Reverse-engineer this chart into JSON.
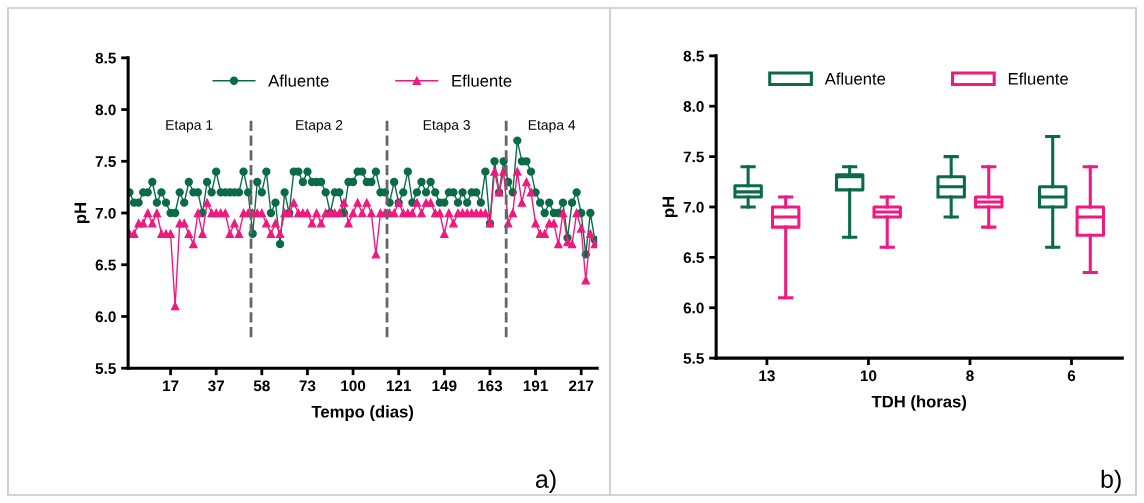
{
  "chart_data": [
    {
      "type": "line",
      "xlabel": "Tempo (dias)",
      "ylabel": "pH",
      "legend": "top",
      "categories": [
        null,
        null,
        null,
        null,
        null,
        null,
        null,
        null,
        null,
        "17",
        null,
        null,
        null,
        null,
        null,
        null,
        null,
        null,
        null,
        "37",
        null,
        null,
        null,
        null,
        null,
        null,
        null,
        null,
        null,
        "58",
        null,
        null,
        null,
        null,
        null,
        null,
        null,
        null,
        null,
        "73",
        null,
        null,
        null,
        null,
        null,
        null,
        null,
        null,
        null,
        "100",
        null,
        null,
        null,
        null,
        null,
        null,
        null,
        null,
        null,
        "121",
        null,
        null,
        null,
        null,
        null,
        null,
        null,
        null,
        null,
        "149",
        null,
        null,
        null,
        null,
        null,
        null,
        null,
        null,
        null,
        "163",
        null,
        null,
        null,
        null,
        null,
        null,
        null,
        null,
        null,
        "191",
        null,
        null,
        null,
        null,
        null,
        null,
        null,
        null,
        null,
        "217",
        null,
        null,
        null
      ],
      "series": [
        {
          "name": "Afluente",
          "color": "#0a6b47",
          "marker": "circle",
          "values": [
            7.2,
            7.1,
            7.1,
            7.2,
            7.2,
            7.3,
            7.1,
            7.2,
            7.1,
            7.0,
            7.0,
            7.2,
            7.1,
            7.3,
            7.2,
            7.2,
            7.0,
            7.3,
            7.2,
            7.4,
            7.2,
            7.2,
            7.2,
            7.2,
            7.2,
            7.4,
            7.2,
            6.8,
            7.3,
            7.2,
            7.4,
            7.0,
            7.1,
            6.7,
            7.2,
            7.0,
            7.4,
            7.4,
            7.3,
            7.4,
            7.3,
            7.3,
            7.3,
            7.2,
            7.0,
            7.2,
            7.2,
            7.0,
            7.3,
            7.3,
            7.4,
            7.4,
            7.3,
            7.3,
            7.4,
            7.2,
            7.2,
            7.1,
            7.3,
            7.1,
            7.2,
            7.4,
            7.1,
            7.2,
            7.3,
            7.2,
            7.3,
            7.2,
            7.1,
            7.1,
            7.2,
            7.2,
            7.1,
            7.2,
            7.1,
            7.2,
            7.2,
            7.1,
            7.4,
            6.9,
            7.5,
            7.2,
            7.5,
            7.3,
            7.2,
            7.7,
            7.5,
            7.5,
            7.4,
            7.2,
            7.1,
            7.0,
            7.1,
            7.0,
            7.0,
            7.1,
            6.76,
            7.1,
            7.2,
            7.0,
            6.6,
            7.0,
            6.74
          ]
        },
        {
          "name": "Efluente",
          "color": "#f0197f",
          "marker": "triangle",
          "values": [
            6.8,
            6.8,
            6.9,
            6.9,
            7.0,
            6.9,
            7.0,
            6.8,
            6.8,
            6.8,
            6.1,
            6.9,
            6.9,
            6.8,
            6.7,
            7.0,
            6.8,
            7.1,
            7.0,
            7.0,
            7.0,
            7.0,
            6.8,
            6.9,
            6.8,
            7.0,
            7.0,
            7.0,
            7.0,
            7.0,
            6.9,
            6.8,
            6.9,
            6.8,
            7.0,
            7.0,
            7.1,
            7.0,
            7.0,
            7.0,
            6.9,
            7.0,
            6.9,
            7.0,
            7.0,
            7.0,
            7.0,
            7.1,
            6.9,
            7.0,
            7.1,
            7.0,
            7.1,
            7.0,
            6.6,
            7.0,
            7.0,
            7.0,
            7.0,
            7.1,
            7.0,
            7.0,
            7.0,
            7.1,
            7.0,
            7.1,
            7.1,
            7.0,
            7.0,
            6.8,
            7.0,
            6.9,
            7.0,
            7.0,
            7.0,
            7.0,
            7.0,
            7.0,
            7.0,
            6.9,
            7.4,
            7.2,
            7.4,
            6.9,
            7.0,
            7.4,
            7.1,
            7.3,
            7.2,
            6.9,
            6.8,
            6.8,
            6.9,
            6.9,
            6.7,
            7.0,
            6.72,
            6.7,
            7.0,
            6.85,
            6.35,
            6.8,
            6.7
          ]
        }
      ],
      "ylim": [
        5.5,
        8.5
      ],
      "yticks": [
        5.5,
        {
          "value": 6,
          "label": "6.0"
        },
        6.5,
        {
          "value": 7,
          "label": "7.0"
        },
        7.5,
        {
          "value": 8,
          "label": "8.0"
        },
        8.5
      ],
      "annotations": [
        "Etapa 1",
        "Etapa 2",
        "Etapa 3",
        "Etapa 4",
        "a)"
      ]
    },
    {
      "type": "box",
      "xlabel": "TDH (horas)",
      "ylabel": "pH",
      "legend": "top",
      "categories": [
        "13",
        "10",
        "8",
        "6"
      ],
      "series": [
        {
          "name": "Afluente",
          "color": "#0a6b47",
          "boxes": [
            {
              "low": 7.0,
              "q1": 7.1,
              "median": 7.15,
              "q3": 7.21,
              "high": 7.4
            },
            {
              "low": 6.7,
              "q1": 7.17,
              "median": 7.3,
              "q3": 7.32,
              "high": 7.4
            },
            {
              "low": 6.9,
              "q1": 7.1,
              "median": 7.2,
              "q3": 7.3,
              "high": 7.5
            },
            {
              "low": 6.6,
              "q1": 7.0,
              "median": 7.1,
              "q3": 7.2,
              "high": 7.7
            }
          ]
        },
        {
          "name": "Efluente",
          "color": "#f0197f",
          "boxes": [
            {
              "low": 6.1,
              "q1": 6.8,
              "median": 6.9,
              "q3": 7.0,
              "high": 7.1
            },
            {
              "low": 6.6,
              "q1": 6.9,
              "median": 6.95,
              "q3": 7.0,
              "high": 7.1
            },
            {
              "low": 6.8,
              "q1": 7.0,
              "median": 7.05,
              "q3": 7.1,
              "high": 7.4
            },
            {
              "low": 6.35,
              "q1": 6.72,
              "median": 6.9,
              "q3": 7.0,
              "high": 7.4
            }
          ]
        }
      ],
      "ylim": [
        5.5,
        8.5
      ],
      "yticks": [
        5.5,
        {
          "value": 6,
          "label": "6.0"
        },
        6.5,
        {
          "value": 7,
          "label": "7.0"
        },
        7.5,
        {
          "value": 8,
          "label": "8.0"
        },
        8.5
      ],
      "annotations": [
        "b)"
      ]
    }
  ]
}
